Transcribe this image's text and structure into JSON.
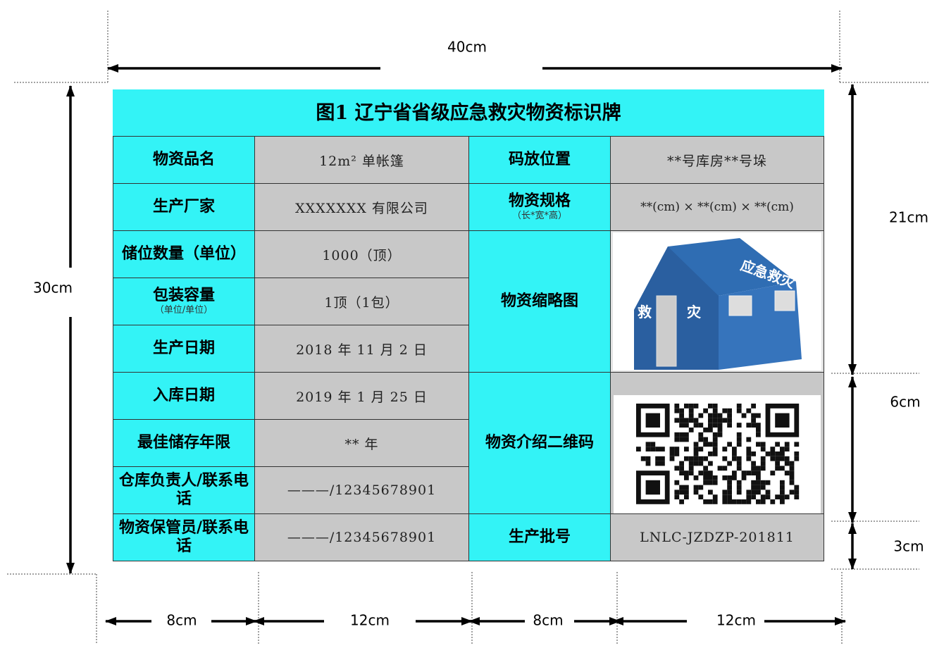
{
  "dimensions": {
    "width": "40cm",
    "height": "30cm",
    "right": [
      "21cm",
      "6cm",
      "3cm"
    ],
    "bottom": [
      "8cm",
      "12cm",
      "8cm",
      "12cm"
    ]
  },
  "table": {
    "title": "图1 辽宁省省级应急救灾物资标识牌",
    "fields": [
      {
        "label": "物资品名",
        "value": "12m² 单帐篷"
      },
      {
        "label": "生产厂家",
        "value": "XXXXXXX 有限公司"
      },
      {
        "label": "储位数量（单位）",
        "value": "1000（顶）"
      },
      {
        "label": "包装容量",
        "note": "（单位/单位）",
        "value": "1顶（1包）"
      },
      {
        "label": "生产日期",
        "value": "2018 年 11 月 2 日"
      },
      {
        "label": "入库日期",
        "value": "2019 年 1 月 25 日"
      },
      {
        "label": "最佳储存年限",
        "value": "** 年"
      },
      {
        "label": "仓库负责人/联系电话",
        "value": "———/12345678901"
      },
      {
        "label": "物资保管员/联系电话",
        "value": "———/12345678901"
      }
    ],
    "right_fields": [
      {
        "label": "码放位置",
        "value": "**号库房**号垛"
      },
      {
        "label": "物资规格",
        "note": "（长*宽*高）",
        "value": "**(cm) × **(cm) × **(cm)"
      },
      {
        "label": "物资缩略图",
        "image_texts": [
          "应急救灾",
          "救",
          "灾"
        ]
      },
      {
        "label": "物资介绍二维码"
      },
      {
        "label": "生产批号",
        "value": "LNLC-JZDZP-201811"
      }
    ]
  }
}
